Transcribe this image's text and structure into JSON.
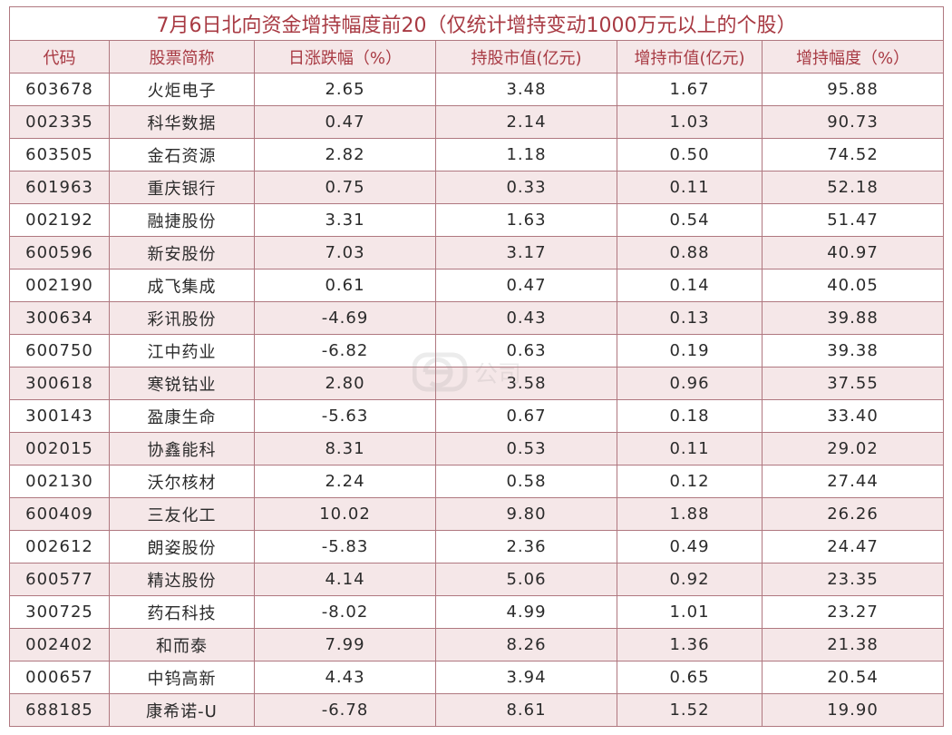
{
  "title": "7月6日北向资金增持幅度前20（仅统计增持变动1000万元以上的个股）",
  "columns": [
    "代码",
    "股票简称",
    "日涨跌幅（%）",
    "持股市值(亿元)",
    "增持市值(亿元)",
    "增持幅度（%）"
  ],
  "rows": [
    [
      "603678",
      "火炬电子",
      "2.65",
      "3.48",
      "1.67",
      "95.88"
    ],
    [
      "002335",
      "科华数据",
      "0.47",
      "2.14",
      "1.03",
      "90.73"
    ],
    [
      "603505",
      "金石资源",
      "2.82",
      "1.18",
      "0.50",
      "74.52"
    ],
    [
      "601963",
      "重庆银行",
      "0.75",
      "0.33",
      "0.11",
      "52.18"
    ],
    [
      "002192",
      "融捷股份",
      "3.31",
      "1.63",
      "0.54",
      "51.47"
    ],
    [
      "600596",
      "新安股份",
      "7.03",
      "3.17",
      "0.88",
      "40.97"
    ],
    [
      "002190",
      "成飞集成",
      "0.61",
      "0.47",
      "0.14",
      "40.05"
    ],
    [
      "300634",
      "彩讯股份",
      "-4.69",
      "0.43",
      "0.13",
      "39.88"
    ],
    [
      "600750",
      "江中药业",
      "-6.82",
      "0.63",
      "0.19",
      "39.38"
    ],
    [
      "300618",
      "寒锐钴业",
      "2.80",
      "3.58",
      "0.96",
      "37.55"
    ],
    [
      "300143",
      "盈康生命",
      "-5.63",
      "0.67",
      "0.18",
      "33.40"
    ],
    [
      "002015",
      "协鑫能科",
      "8.31",
      "0.53",
      "0.11",
      "29.02"
    ],
    [
      "002130",
      "沃尔核材",
      "2.24",
      "0.58",
      "0.12",
      "27.44"
    ],
    [
      "600409",
      "三友化工",
      "10.02",
      "9.80",
      "1.88",
      "26.26"
    ],
    [
      "002612",
      "朗姿股份",
      "-5.83",
      "2.36",
      "0.49",
      "24.47"
    ],
    [
      "600577",
      "精达股份",
      "4.14",
      "5.06",
      "0.92",
      "23.35"
    ],
    [
      "300725",
      "药石科技",
      "-8.02",
      "4.99",
      "1.01",
      "23.27"
    ],
    [
      "002402",
      "和而泰",
      "7.99",
      "8.26",
      "1.36",
      "21.38"
    ],
    [
      "000657",
      "中钨高新",
      "4.43",
      "3.94",
      "0.65",
      "20.54"
    ],
    [
      "688185",
      "康希诺-U",
      "-6.78",
      "8.61",
      "1.52",
      "19.90"
    ]
  ],
  "watermark": {
    "icon": "e-company-logo-icon",
    "text": "公司"
  },
  "colors": {
    "accent": "#a83a43",
    "border": "#b07880",
    "stripe": "#f5e7e8"
  }
}
